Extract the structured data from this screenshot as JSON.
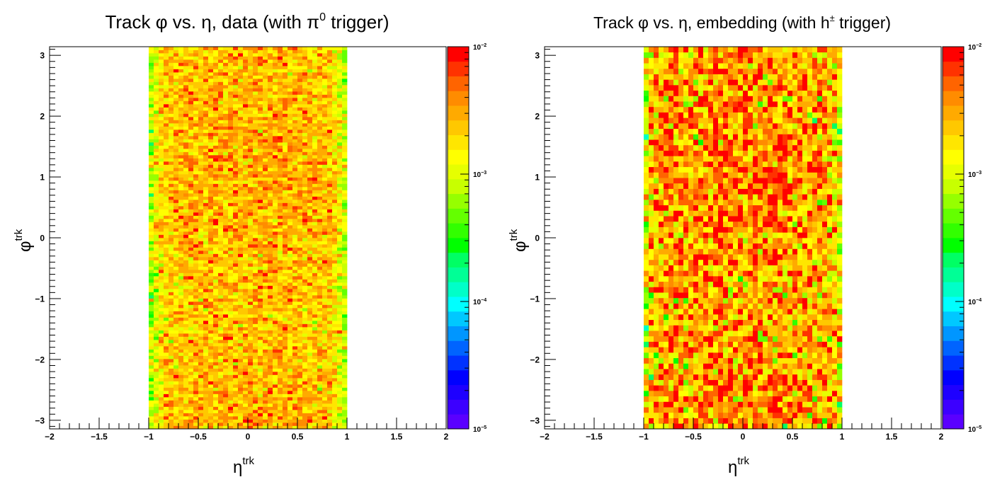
{
  "chart_data": [
    {
      "type": "heatmap",
      "title_parts": [
        "Track ",
        "φ",
        " vs. ",
        "η",
        ", data (with ",
        "π",
        "0",
        " trigger)"
      ],
      "xlabel": {
        "main": "η",
        "sup": "trk"
      },
      "ylabel": {
        "main": "φ",
        "sup": "trk"
      },
      "xlim": [
        -2,
        2
      ],
      "ylim": [
        -3.1416,
        3.1416
      ],
      "x_ticks": [
        "−2",
        "−1.5",
        "−1",
        "−0.5",
        "0",
        "0.5",
        "1",
        "1.5",
        "2"
      ],
      "y_ticks": [
        "3",
        "2",
        "1",
        "0",
        "−1",
        "−2",
        "−3"
      ],
      "filled_eta_range": [
        -1,
        1
      ],
      "n_bins_eta": 40,
      "n_bins_phi": 120,
      "z_scale": "log",
      "z_range": [
        1e-05,
        0.01
      ],
      "typical_z": 0.0022,
      "z_spread": 0.22,
      "edge_drop": 0.5,
      "seed": 11,
      "colorbar_ticks": [
        {
          "base": "10",
          "exp": "−2"
        },
        {
          "base": "10",
          "exp": "−3"
        },
        {
          "base": "10",
          "exp": "−4"
        },
        {
          "base": "10",
          "exp": "−5"
        }
      ]
    },
    {
      "type": "heatmap",
      "title_parts": [
        "Track ",
        "φ",
        " vs. ",
        "η",
        ", embedding (with ",
        "h",
        "±",
        " trigger)"
      ],
      "xlabel": {
        "main": "η",
        "sup": "trk"
      },
      "ylabel": {
        "main": "φ",
        "sup": "trk"
      },
      "xlim": [
        -2,
        2
      ],
      "ylim": [
        -3.1416,
        3.1416
      ],
      "x_ticks": [
        "−2",
        "−1.5",
        "−1",
        "−0.5",
        "0",
        "0.5",
        "1",
        "1.5",
        "2"
      ],
      "y_ticks": [
        "3",
        "2",
        "1",
        "0",
        "−1",
        "−2",
        "−3"
      ],
      "filled_eta_range": [
        -1,
        1
      ],
      "n_bins_eta": 40,
      "n_bins_phi": 70,
      "z_scale": "log",
      "z_range": [
        1e-05,
        0.01
      ],
      "typical_z": 0.003,
      "z_spread": 0.38,
      "edge_drop": 0.45,
      "seed": 29,
      "colorbar_ticks": [
        {
          "base": "10",
          "exp": "−2"
        },
        {
          "base": "10",
          "exp": "−3"
        },
        {
          "base": "10",
          "exp": "−4"
        },
        {
          "base": "10",
          "exp": "−5"
        }
      ]
    }
  ],
  "palette": [
    "#5a00ff",
    "#3c00ff",
    "#1e00ff",
    "#0000ff",
    "#0032ff",
    "#0064ff",
    "#0096ff",
    "#00c8ff",
    "#00ffff",
    "#00ffc8",
    "#00ff96",
    "#00ff64",
    "#00ff00",
    "#32ff00",
    "#64ff00",
    "#96ff00",
    "#c8ff00",
    "#e6ff00",
    "#ffff00",
    "#ffe600",
    "#ffc800",
    "#ffaa00",
    "#ff8c00",
    "#ff6400",
    "#ff3200",
    "#ff0000"
  ]
}
